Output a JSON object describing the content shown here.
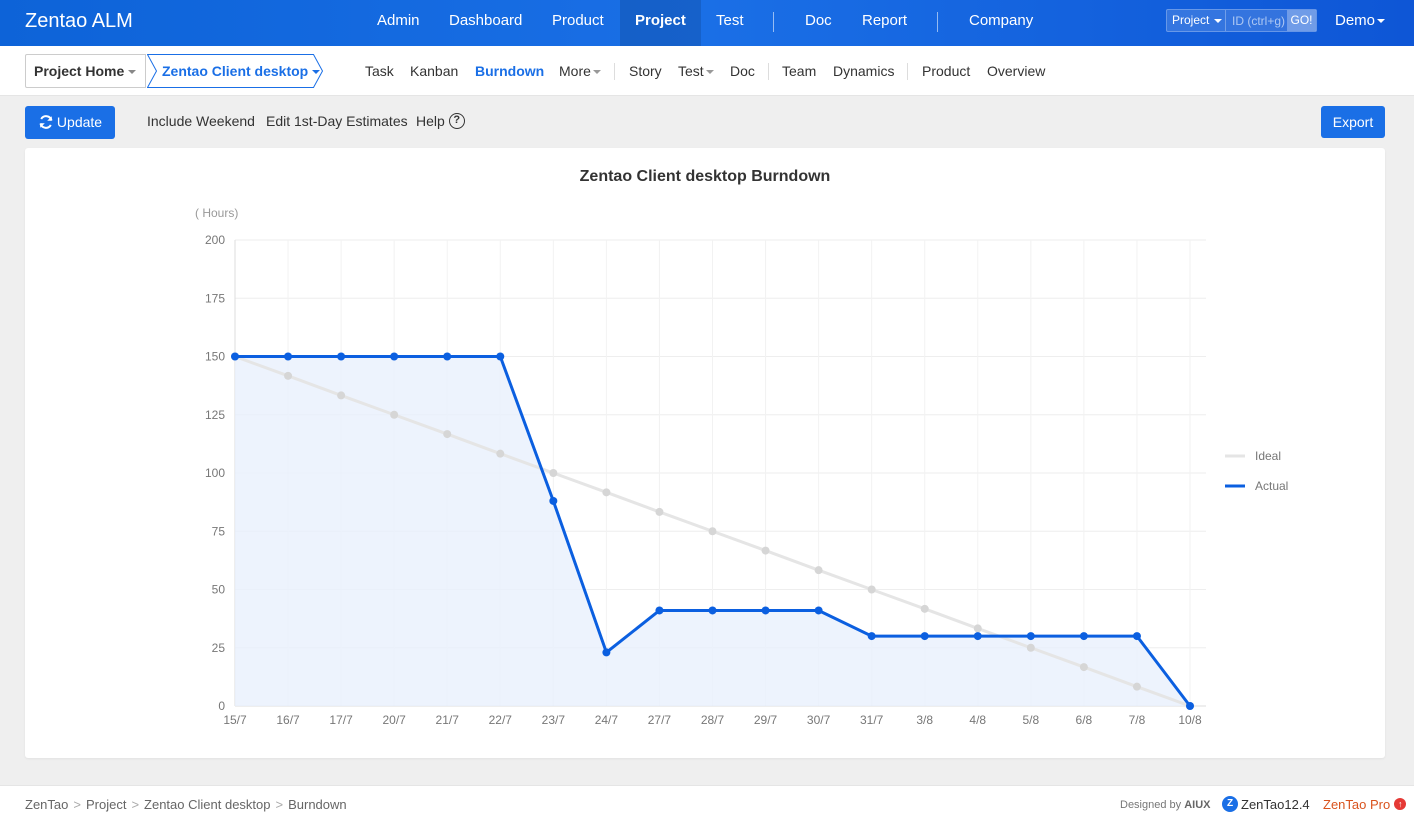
{
  "header": {
    "brand": "Zentao ALM",
    "nav": [
      {
        "label": "Admin",
        "active": false
      },
      {
        "label": "Dashboard",
        "active": false
      },
      {
        "label": "Product",
        "active": false
      },
      {
        "label": "Project",
        "active": true
      },
      {
        "label": "Test",
        "active": false
      },
      {
        "label": "Doc",
        "active": false
      },
      {
        "label": "Report",
        "active": false
      },
      {
        "label": "Company",
        "active": false
      }
    ],
    "search": {
      "type": "Project",
      "placeholder": "ID (ctrl+g)",
      "go_label": "GO!"
    },
    "user": "Demo"
  },
  "subnav": {
    "project_home": "Project Home",
    "project_name": "Zentao Client desktop",
    "items": [
      {
        "label": "Task"
      },
      {
        "label": "Kanban"
      },
      {
        "label": "Burndown",
        "active": true
      },
      {
        "label": "More"
      },
      {
        "label": "Story"
      },
      {
        "label": "Test"
      },
      {
        "label": "Doc"
      },
      {
        "label": "Team"
      },
      {
        "label": "Dynamics"
      },
      {
        "label": "Product"
      },
      {
        "label": "Overview"
      }
    ]
  },
  "toolbar": {
    "update_label": "Update",
    "include_weekend": "Include Weekend",
    "edit_estimates": "Edit 1st-Day Estimates",
    "help": "Help",
    "export_label": "Export"
  },
  "colors": {
    "accent": "#1a6fe6",
    "ideal_line": "#e5e5e5",
    "ideal_point": "#d6d6d6",
    "actual_line": "#0b5fe0",
    "actual_fill": "#e8f0fc"
  },
  "chart_data": {
    "type": "line",
    "title": "Zentao Client desktop Burndown",
    "ylabel": "( Hours)",
    "xlabel": "",
    "ylim": [
      0,
      200
    ],
    "yticks": [
      0,
      25,
      50,
      75,
      100,
      125,
      150,
      175,
      200
    ],
    "grid": true,
    "legend_position": "right",
    "categories": [
      "15/7",
      "16/7",
      "17/7",
      "20/7",
      "21/7",
      "22/7",
      "23/7",
      "24/7",
      "27/7",
      "28/7",
      "29/7",
      "30/7",
      "31/7",
      "3/8",
      "4/8",
      "5/8",
      "6/8",
      "7/8",
      "10/8"
    ],
    "series": [
      {
        "name": "Ideal",
        "values": [
          150,
          141.7,
          133.3,
          125,
          116.7,
          108.3,
          100,
          91.7,
          83.3,
          75,
          66.7,
          58.3,
          50,
          41.7,
          33.3,
          25,
          16.7,
          8.3,
          0
        ]
      },
      {
        "name": "Actual",
        "values": [
          150,
          150,
          150,
          150,
          150,
          150,
          88,
          23,
          41,
          41,
          41,
          41,
          30,
          30,
          30,
          30,
          30,
          30,
          0
        ]
      }
    ]
  },
  "footer": {
    "breadcrumb": [
      "ZenTao",
      "Project",
      "Zentao Client desktop",
      "Burndown"
    ],
    "designed_by": "Designed by",
    "designer": "AIUX",
    "version": "ZenTao12.4",
    "pro": "ZenTao Pro"
  }
}
